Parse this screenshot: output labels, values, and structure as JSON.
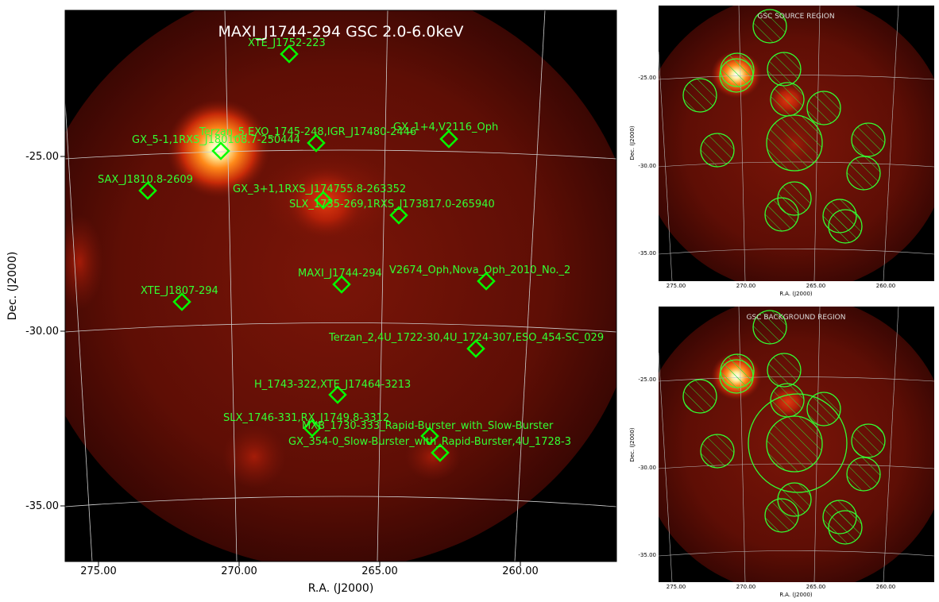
{
  "main": {
    "title": "MAXI_J1744-294 GSC 2.0-6.0keV",
    "xlabel": "R.A. (J2000)",
    "ylabel": "Dec. (J2000)",
    "ra_ticks": [
      "275.00",
      "270.00",
      "265.00",
      "260.00"
    ],
    "dec_ticks": [
      "-25.00",
      "-30.00",
      "-35.00"
    ],
    "sources": [
      {
        "id": "xte1752",
        "label": "XTE_J1752-223"
      },
      {
        "id": "terzan5",
        "label": "Terzan_5,EXO_1745-248,IGR_J17480-2446"
      },
      {
        "id": "gx14",
        "label": "GX_1+4,V2116_Oph"
      },
      {
        "id": "gx51",
        "label": "GX_5-1,1RXS_J180108.7-250444"
      },
      {
        "id": "sax1810",
        "label": "SAX_J1810.8-2609"
      },
      {
        "id": "gx31",
        "label": "GX_3+1,1RXS_J174755.8-263352"
      },
      {
        "id": "slx1735",
        "label": "SLX_1735-269,1RXS_J173817.0-265940"
      },
      {
        "id": "maxi1744",
        "label": "MAXI_J1744-294"
      },
      {
        "id": "v2674",
        "label": "V2674_Oph,Nova_Oph_2010_No._2"
      },
      {
        "id": "xte1807",
        "label": "XTE_J1807-294"
      },
      {
        "id": "terzan2",
        "label": "Terzan_2,4U_1722-30,4U_1724-307,ESO_454-SC_029"
      },
      {
        "id": "h1743",
        "label": "H_1743-322,XTE_J17464-3213"
      },
      {
        "id": "slx1746",
        "label": "SLX_1746-331,RX_J1749.8-3312"
      },
      {
        "id": "mxb1730",
        "label": "MXB_1730-333_Rapid-Burster_with_Slow-Burster"
      },
      {
        "id": "gx354",
        "label": "GX_354-0_Slow-Burster_with_Rapid-Burster,4U_1728-3"
      }
    ]
  },
  "source_panel": {
    "title": "GSC SOURCE REGION",
    "xlabel": "R.A. (J2000)",
    "ylabel": "Dec. (J2000)",
    "ra_ticks": [
      "275.00",
      "270.00",
      "265.00",
      "260.00"
    ],
    "dec_ticks": [
      "-25.00",
      "-30.00",
      "-35.00"
    ]
  },
  "background_panel": {
    "title": "GSC BACKGROUND REGION",
    "xlabel": "R.A. (J2000)",
    "ylabel": "Dec. (J2000)",
    "ra_ticks": [
      "275.00",
      "270.00",
      "265.00",
      "260.00"
    ],
    "dec_ticks": [
      "-25.00",
      "-30.00",
      "-35.00"
    ]
  },
  "colors": {
    "marker": "#00ff00",
    "label": "#33ff33",
    "grid": "#cccccc",
    "background": "#000000"
  }
}
